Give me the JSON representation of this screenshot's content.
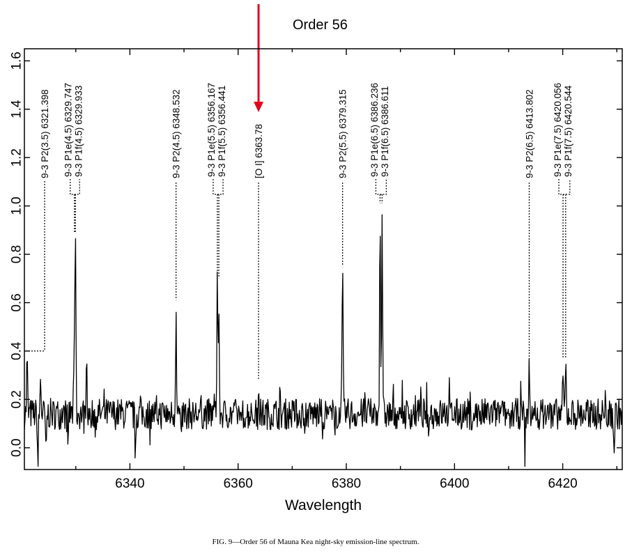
{
  "chart_data": {
    "type": "line",
    "title": "Order 56",
    "xlabel": "Wavelength",
    "ylabel": "",
    "xlim": [
      6320.5,
      6431
    ],
    "ylim": [
      -0.09,
      1.65
    ],
    "xticks": [
      6340,
      6360,
      6380,
      6400,
      6420
    ],
    "yticks": [
      0.0,
      0.2,
      0.4,
      0.6,
      0.8,
      1.0,
      1.2,
      1.4,
      1.6
    ],
    "ytick_labels": [
      "0.0",
      "0.2",
      "0.4",
      "0.6",
      "0.8",
      "1.0",
      "1.2",
      "1.4",
      "1.6"
    ],
    "grid": false,
    "arrow_target": 6363.78,
    "caption": "FIG. 9—Order 56 of Mauna Kea night-sky emission-line spectrum.",
    "baseline": 0.14,
    "noise": 0.065,
    "peaks": [
      {
        "x": 6321.0,
        "y": 0.37
      },
      {
        "x": 6323.5,
        "y": 0.29
      },
      {
        "x": 6329.747,
        "y": 0.47
      },
      {
        "x": 6329.933,
        "y": 0.88
      },
      {
        "x": 6332.0,
        "y": 0.45
      },
      {
        "x": 6348.532,
        "y": 0.6
      },
      {
        "x": 6356.167,
        "y": 0.69
      },
      {
        "x": 6356.441,
        "y": 0.62
      },
      {
        "x": 6363.78,
        "y": 0.27
      },
      {
        "x": 6379.315,
        "y": 0.74
      },
      {
        "x": 6386.236,
        "y": 1.0
      },
      {
        "x": 6386.611,
        "y": 0.97
      },
      {
        "x": 6413.802,
        "y": 0.31
      },
      {
        "x": 6420.056,
        "y": 0.3
      },
      {
        "x": 6420.544,
        "y": 0.36
      }
    ],
    "dips": [
      {
        "x": 6323.0,
        "y": -0.08
      },
      {
        "x": 6324.5,
        "y": -0.05
      },
      {
        "x": 6328.5,
        "y": -0.03
      },
      {
        "x": 6341.0,
        "y": -0.02
      },
      {
        "x": 6349.5,
        "y": -0.01
      },
      {
        "x": 6413.0,
        "y": -0.02
      },
      {
        "x": 6429.5,
        "y": -0.03
      }
    ],
    "annotations": [
      {
        "labels": [
          "9-3 P2(3.5) 6321.398"
        ],
        "x": [
          6321.398
        ],
        "tip": 0.4,
        "bracket_y": 0.42
      },
      {
        "labels": [
          "9-3 P1e(4.5) 6329.747",
          "9-3 P1f(4.5) 6329.933"
        ],
        "x": [
          6329.747,
          6329.933
        ],
        "tip": 0.88,
        "bracket_y": 1.02
      },
      {
        "labels": [
          "9-3 P2(4.5) 6348.532"
        ],
        "x": [
          6348.532
        ],
        "tip": 0.6,
        "bracket_y": 1.02
      },
      {
        "labels": [
          "9-3 P1e(5.5) 6356.167",
          "9-3 P1f(5.5) 6356.441"
        ],
        "x": [
          6356.167,
          6356.441
        ],
        "tip": 0.69,
        "bracket_y": 1.02
      },
      {
        "labels": [
          "[O I] 6363.78"
        ],
        "x": [
          6363.78
        ],
        "tip": 0.27,
        "bracket_y": 1.02
      },
      {
        "labels": [
          "9-3 P2(5.5) 6379.315"
        ],
        "x": [
          6379.315
        ],
        "tip": 0.74,
        "bracket_y": 1.02
      },
      {
        "labels": [
          "9-3 P1e(6.5) 6386.236",
          "9-3 P1f(6.5) 6386.611"
        ],
        "x": [
          6386.236,
          6386.611
        ],
        "tip": 1.0,
        "bracket_y": 1.02
      },
      {
        "labels": [
          "9-3 P2(6.5) 6413.802"
        ],
        "x": [
          6413.802
        ],
        "tip": 0.31,
        "bracket_y": 1.02
      },
      {
        "labels": [
          "9-3 P1e(7.5) 6420.056",
          "9-3 P1f(7.5) 6420.544"
        ],
        "x": [
          6420.056,
          6420.544
        ],
        "tip": 0.36,
        "bracket_y": 1.02
      }
    ]
  }
}
